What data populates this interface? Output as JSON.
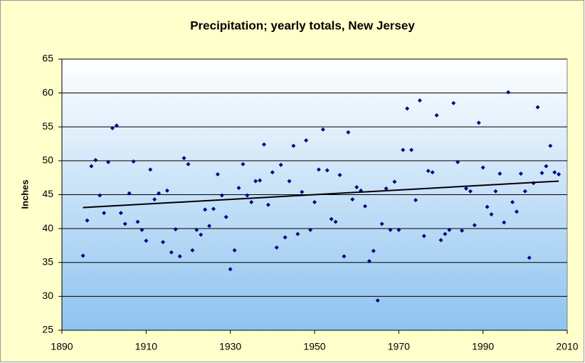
{
  "chart_data": {
    "type": "scatter",
    "title": "Precipitation; yearly totals, New Jersey",
    "y_label": "Inches",
    "x": [
      1895,
      1896,
      1897,
      1898,
      1899,
      1900,
      1901,
      1902,
      1903,
      1904,
      1905,
      1906,
      1907,
      1908,
      1909,
      1910,
      1911,
      1912,
      1913,
      1914,
      1915,
      1916,
      1917,
      1918,
      1919,
      1920,
      1921,
      1922,
      1923,
      1924,
      1925,
      1926,
      1927,
      1928,
      1929,
      1930,
      1931,
      1932,
      1933,
      1934,
      1935,
      1936,
      1937,
      1938,
      1939,
      1940,
      1941,
      1942,
      1943,
      1944,
      1945,
      1946,
      1947,
      1948,
      1949,
      1950,
      1951,
      1952,
      1953,
      1954,
      1955,
      1956,
      1957,
      1958,
      1959,
      1960,
      1961,
      1962,
      1963,
      1964,
      1965,
      1966,
      1967,
      1968,
      1969,
      1970,
      1971,
      1972,
      1973,
      1974,
      1975,
      1976,
      1977,
      1978,
      1979,
      1980,
      1981,
      1982,
      1983,
      1984,
      1985,
      1986,
      1987,
      1988,
      1989,
      1990,
      1991,
      1992,
      1993,
      1994,
      1995,
      1996,
      1997,
      1998,
      1999,
      2000,
      2001,
      2002,
      2003,
      2004,
      2005,
      2006,
      2007,
      2008
    ],
    "values": [
      36.0,
      41.2,
      49.2,
      50.1,
      44.9,
      42.3,
      49.8,
      54.8,
      55.2,
      42.3,
      40.7,
      45.2,
      49.9,
      41.0,
      39.8,
      38.2,
      48.7,
      44.3,
      45.2,
      38.0,
      45.6,
      36.5,
      39.9,
      35.9,
      50.4,
      49.5,
      36.8,
      39.8,
      39.1,
      42.8,
      40.4,
      42.9,
      48.0,
      44.9,
      41.7,
      34.0,
      36.8,
      46.0,
      49.5,
      44.9,
      43.9,
      47.0,
      47.1,
      52.4,
      43.5,
      48.3,
      37.2,
      49.4,
      38.7,
      47.0,
      52.2,
      39.2,
      45.4,
      53.0,
      39.8,
      43.9,
      48.7,
      54.6,
      48.6,
      41.4,
      41.0,
      47.9,
      35.9,
      54.2,
      44.3,
      46.1,
      45.6,
      43.3,
      35.2,
      36.7,
      29.4,
      40.7,
      45.9,
      39.8,
      46.9,
      39.8,
      51.6,
      57.7,
      51.6,
      44.2,
      58.9,
      38.9,
      48.5,
      48.3,
      56.7,
      38.3,
      39.2,
      39.8,
      58.5,
      49.8,
      39.7,
      45.9,
      45.5,
      40.5,
      55.6,
      49.0,
      43.2,
      42.1,
      45.5,
      48.1,
      40.9,
      60.1,
      43.9,
      42.5,
      48.1,
      45.5,
      35.7,
      46.7,
      57.9,
      48.2,
      49.2,
      52.2,
      48.3,
      48.0
    ],
    "color": "#000080",
    "trendline": {
      "x": [
        1895,
        2008
      ],
      "values": [
        43.1,
        47.0
      ],
      "color": "#000000"
    },
    "xlim": [
      1890,
      2010
    ],
    "xticks": [
      1890,
      1910,
      1930,
      1950,
      1970,
      1990,
      2010
    ],
    "ylim": [
      25,
      65
    ],
    "yticks": [
      25,
      30,
      35,
      40,
      45,
      50,
      55,
      60,
      65
    ],
    "grid": true
  }
}
